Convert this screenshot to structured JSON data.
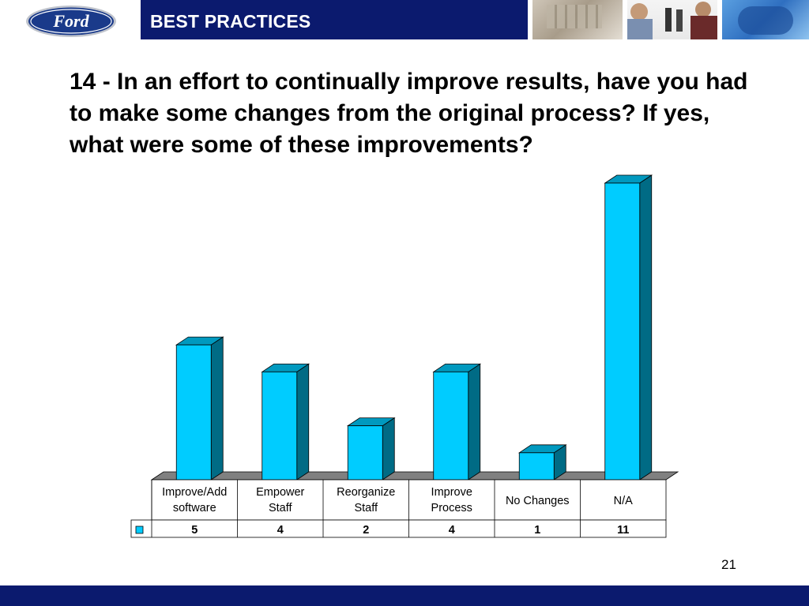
{
  "header": {
    "title": "BEST PRACTICES",
    "logo_text": "Ford"
  },
  "question": "14 - In an effort to continually improve results, have you had to make some changes from the original process?  If yes, what were some of these improvements?",
  "chart_data": {
    "type": "bar",
    "categories": [
      [
        "Improve/Add",
        "software"
      ],
      [
        "Empower",
        "Staff"
      ],
      [
        "Reorganize",
        "Staff"
      ],
      [
        "Improve",
        "Process"
      ],
      [
        "No Changes"
      ],
      [
        "N/A"
      ]
    ],
    "values": [
      5,
      4,
      2,
      4,
      1,
      11
    ],
    "ylim": [
      0,
      11
    ],
    "grid": false,
    "legend": "data-table",
    "bar_color": "#00ccff",
    "bar_side_color": "#006b85",
    "bar_top_color": "#0099bf",
    "floor_color": "#808080"
  },
  "page_number": "21",
  "colors": {
    "brand_navy": "#0b1a6e",
    "logo_blue": "#1a3a8a"
  }
}
